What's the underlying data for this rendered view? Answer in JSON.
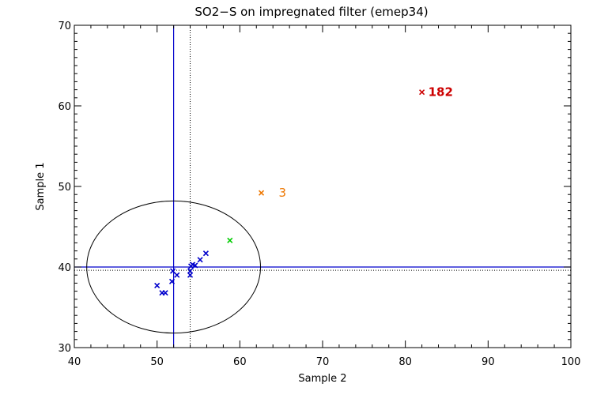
{
  "chart_data": {
    "type": "scatter",
    "title": "SO2−S on impregnated filter (emep34)",
    "xlabel": "Sample 2",
    "ylabel": "Sample 1",
    "xlim": [
      40,
      100
    ],
    "ylim": [
      30,
      70
    ],
    "x_ticks": [
      40,
      50,
      60,
      70,
      80,
      90,
      100
    ],
    "y_ticks": [
      30,
      40,
      50,
      60,
      70
    ],
    "x_tick_labels": [
      "40",
      "50",
      "60",
      "70",
      "80",
      "90",
      "100"
    ],
    "y_tick_labels": [
      "30",
      "40",
      "50",
      "60",
      "70"
    ],
    "grid": false,
    "reference_lines": {
      "vertical_solid_x": 52.0,
      "vertical_dotted_x": 54.0,
      "horizontal_solid_y": 40.0,
      "horizontal_dotted_y": 39.6,
      "solid_color": "#0000cc",
      "dotted_color": "#000000"
    },
    "ellipse": {
      "center_x": 52.0,
      "center_y": 40.0,
      "radius_x": 10.5,
      "radius_y": 8.2,
      "color": "#000000"
    },
    "series": [
      {
        "color": "#0000cc",
        "points": [
          {
            "x": 50.0,
            "y": 37.7
          },
          {
            "x": 50.6,
            "y": 36.8
          },
          {
            "x": 51.0,
            "y": 36.8
          },
          {
            "x": 51.8,
            "y": 38.2
          },
          {
            "x": 51.9,
            "y": 39.5
          },
          {
            "x": 52.4,
            "y": 39.0
          },
          {
            "x": 54.0,
            "y": 39.0
          },
          {
            "x": 54.0,
            "y": 39.5
          },
          {
            "x": 54.1,
            "y": 40.1
          },
          {
            "x": 54.3,
            "y": 40.3
          },
          {
            "x": 54.6,
            "y": 40.2
          },
          {
            "x": 55.2,
            "y": 40.9
          },
          {
            "x": 55.9,
            "y": 41.7
          }
        ]
      },
      {
        "color": "#00cc00",
        "points": [
          {
            "x": 58.8,
            "y": 43.3
          }
        ]
      },
      {
        "color": "#ee7700",
        "points": [
          {
            "x": 62.6,
            "y": 49.2,
            "label": "3"
          }
        ]
      },
      {
        "color": "#cc0000",
        "points": [
          {
            "x": 82.0,
            "y": 61.7,
            "label": "182"
          }
        ]
      }
    ]
  }
}
